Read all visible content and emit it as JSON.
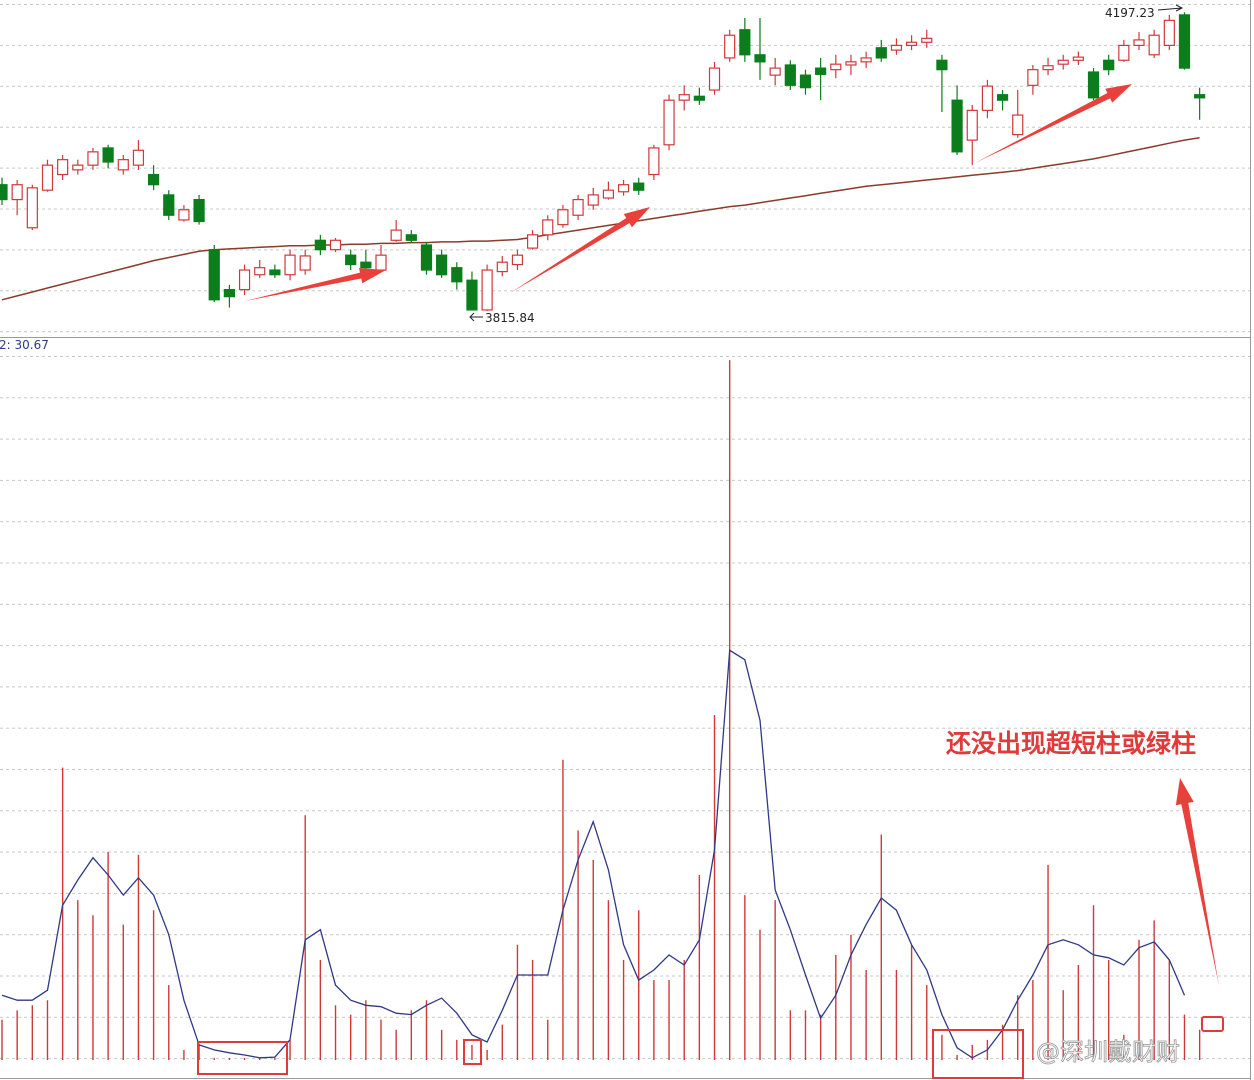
{
  "chart_data": [
    {
      "type": "candlestick",
      "ylim": [
        3785,
        4213
      ],
      "up_color": "#d0393b",
      "down_color": "#0b7d1c",
      "max_label": 4197.23,
      "min_label": 3815.84,
      "open": [
        3977,
        3958,
        3922,
        3970,
        3990,
        3996,
        4002,
        4024,
        3996,
        4002,
        3990,
        3964,
        3932,
        3958,
        3894,
        3843,
        3843,
        3862,
        3868,
        3862,
        3868,
        3906,
        3894,
        3887,
        3878,
        3868,
        3906,
        3913,
        3900,
        3887,
        3871,
        3855,
        3817,
        3866,
        3875,
        3896,
        3913,
        3926,
        3938,
        3951,
        3960,
        3968,
        3979,
        3990,
        4028,
        4085,
        4090,
        4098,
        4139,
        4175,
        4143,
        4117,
        4130,
        4117,
        4126,
        4124,
        4130,
        4134,
        4152,
        4149,
        4155,
        4159,
        4136,
        4085,
        4034,
        4072,
        4092,
        4041,
        4104,
        4124,
        4131,
        4136,
        4121,
        4136,
        4136,
        4155,
        4143,
        4155,
        4194,
        4092
      ],
      "high": [
        3986,
        3983,
        3977,
        4009,
        4015,
        4009,
        4024,
        4028,
        4015,
        4034,
        4002,
        3970,
        3951,
        3964,
        3900,
        3849,
        3875,
        3881,
        3875,
        3894,
        3894,
        3913,
        3909,
        3894,
        3894,
        3900,
        3932,
        3919,
        3904,
        3894,
        3878,
        3866,
        3875,
        3886,
        3894,
        3919,
        3938,
        3951,
        3964,
        3973,
        3981,
        3983,
        3986,
        4028,
        4092,
        4104,
        4101,
        4134,
        4175,
        4190,
        4190,
        4139,
        4136,
        4124,
        4139,
        4143,
        4143,
        4147,
        4162,
        4164,
        4168,
        4175,
        4143,
        4104,
        4079,
        4111,
        4098,
        4098,
        4130,
        4139,
        4143,
        4147,
        4126,
        4143,
        4162,
        4172,
        4175,
        4194,
        4197.23,
        4101
      ],
      "low": [
        3951,
        3938,
        3919,
        3968,
        3983,
        3990,
        3996,
        3998,
        3990,
        3996,
        3970,
        3932,
        3930,
        3926,
        3827,
        3820,
        3836,
        3858,
        3858,
        3855,
        3862,
        3887,
        3891,
        3868,
        3866,
        3866,
        3904,
        3903,
        3862,
        3858,
        3843,
        3817,
        3815.84,
        3860,
        3868,
        3894,
        3906,
        3922,
        3932,
        3945,
        3958,
        3963,
        3964,
        3983,
        4021,
        4072,
        4079,
        4092,
        4134,
        4134,
        4111,
        4104,
        4098,
        4092,
        4085,
        4113,
        4117,
        4126,
        4134,
        4143,
        4149,
        4152,
        4070,
        4015,
        4002,
        4062,
        4072,
        4037,
        4092,
        4117,
        4124,
        4130,
        4085,
        4117,
        4134,
        4149,
        4139,
        4149,
        4124,
        4060
      ],
      "close": [
        3958,
        3977,
        3973,
        4002,
        4009,
        4002,
        4019,
        4006,
        4009,
        4021,
        3977,
        3938,
        3945,
        3930,
        3830,
        3834,
        3868,
        3871,
        3862,
        3887,
        3886,
        3894,
        3906,
        3875,
        3871,
        3887,
        3919,
        3906,
        3868,
        3862,
        3853,
        3817,
        3868,
        3878,
        3887,
        3913,
        3932,
        3945,
        3958,
        3964,
        3970,
        3977,
        3970,
        4024,
        4085,
        4092,
        4085,
        4126,
        4168,
        4143,
        4134,
        4126,
        4104,
        4101,
        4118,
        4131,
        4134,
        4139,
        4139,
        4155,
        4159,
        4164,
        4124,
        4019,
        4072,
        4103,
        4085,
        4066,
        4124,
        4129,
        4136,
        4140,
        4088,
        4124,
        4155,
        4162,
        4168,
        4187,
        4126,
        4088
      ],
      "lines": [
        {
          "color": "#8b3b2b",
          "values": [
            3830,
            3835,
            3840,
            3845,
            3850,
            3855,
            3860,
            3865,
            3870,
            3875,
            3880,
            3884,
            3888,
            3892,
            3894,
            3895,
            3896,
            3897,
            3898,
            3899,
            3899,
            3900,
            3900,
            3901,
            3901,
            3902,
            3902,
            3903,
            3903,
            3904,
            3904,
            3905,
            3905,
            3906,
            3907,
            3910,
            3913,
            3916,
            3919,
            3922,
            3925,
            3928,
            3931,
            3934,
            3937,
            3940,
            3943,
            3946,
            3949,
            3951,
            3954,
            3957,
            3960,
            3963,
            3966,
            3969,
            3972,
            3975,
            3977,
            3979,
            3981,
            3983,
            3985,
            3987,
            3989,
            3991,
            3993,
            3995,
            3998,
            4001,
            4004,
            4007,
            4010,
            4014,
            4018,
            4022,
            4026,
            4030,
            4034,
            4037
          ]
        }
      ]
    },
    {
      "type": "bar",
      "indicator_label": "2: 30.67",
      "annotation": "还没出现超短柱或绿柱",
      "ylim": [
        0,
        100
      ],
      "series": [
        {
          "type": "bar",
          "color": "#d0393b",
          "values": [
            5.6,
            6.9,
            7.6,
            8.3,
            40.6,
            22.2,
            20.1,
            28.9,
            18.8,
            28.5,
            20.8,
            10.4,
            1.4,
            2.1,
            0.3,
            0.3,
            0.3,
            0.3,
            0.3,
            2.8,
            34.0,
            13.9,
            7.6,
            6.3,
            8.3,
            5.6,
            4.2,
            6.9,
            8.3,
            4.2,
            2.8,
            2.1,
            1.4,
            4.9,
            16.0,
            13.9,
            5.6,
            41.7,
            31.9,
            27.8,
            22.2,
            13.9,
            20.8,
            11.1,
            11.1,
            13.9,
            25.7,
            47.9,
            97.2,
            22.9,
            18.1,
            22.2,
            6.9,
            6.9,
            6.3,
            14.6,
            17.4,
            12.5,
            31.3,
            12.5,
            16.0,
            10.4,
            3.5,
            0.7,
            2.1,
            2.8,
            4.9,
            9.0,
            11.1,
            27.1,
            9.7,
            13.2,
            21.5,
            13.9,
            3.5,
            16.7,
            19.4,
            13.9,
            6.3,
            4.2
          ]
        },
        {
          "type": "line",
          "color": "#2e3a84",
          "values": [
            9.0,
            8.3,
            8.3,
            9.7,
            21.5,
            25.0,
            28.1,
            25.7,
            22.9,
            25.3,
            22.9,
            17.4,
            8.3,
            2.1,
            1.4,
            1.0,
            0.7,
            0.3,
            0.4,
            2.8,
            16.7,
            18.1,
            10.4,
            8.3,
            7.6,
            7.4,
            6.5,
            6.3,
            7.6,
            8.6,
            6.5,
            3.5,
            2.5,
            6.9,
            11.8,
            11.8,
            11.8,
            20.8,
            27.8,
            33.1,
            26.4,
            16.0,
            11.1,
            12.5,
            14.6,
            13.2,
            16.7,
            29.2,
            56.9,
            55.6,
            47.2,
            23.6,
            18.1,
            11.8,
            5.8,
            9.0,
            14.6,
            18.8,
            22.5,
            20.8,
            16.0,
            12.5,
            6.3,
            1.7,
            0.3,
            1.4,
            4.2,
            8.3,
            11.8,
            16.0,
            16.7,
            16.0,
            14.6,
            14.2,
            13.2,
            15.6,
            16.4,
            13.9,
            9.0,
            null
          ]
        }
      ]
    }
  ],
  "watermark": "@深圳戴财财"
}
